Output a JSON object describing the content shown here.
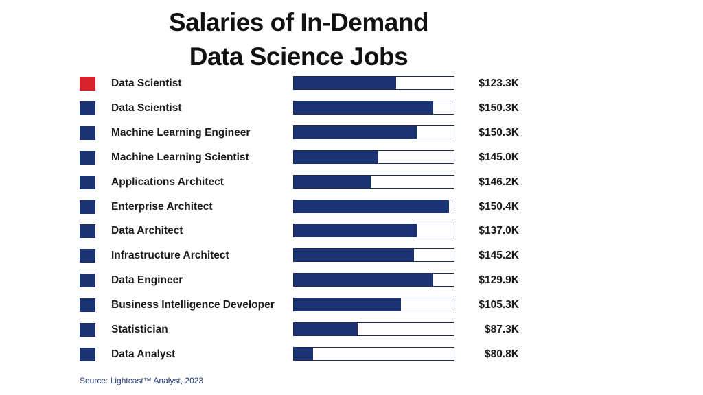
{
  "colors": {
    "highlight": "#d7212b",
    "bar": "#1c3373",
    "bar_border": "#1b2a5a",
    "text": "#1a1a1a",
    "source_text": "#1f3a7a"
  },
  "chart_data": {
    "type": "bar",
    "orientation": "horizontal",
    "title": "Salaries of In-Demand Data Science Jobs",
    "title_lines": [
      "Salaries of In-Demand",
      "Data Science Jobs"
    ],
    "source": "Source: Lightcast™ Analyst, 2023",
    "legend": "none",
    "grid": false,
    "rows": [
      {
        "category": "Data Scientist",
        "value_label": "$123.3K",
        "fill": 0.64,
        "highlight": true
      },
      {
        "category": "Data Scientist",
        "value_label": "$150.3K",
        "fill": 0.87,
        "highlight": false
      },
      {
        "category": "Machine Learning Engineer",
        "value_label": "$150.3K",
        "fill": 0.77,
        "highlight": false
      },
      {
        "category": "Machine Learning Scientist",
        "value_label": "$145.0K",
        "fill": 0.53,
        "highlight": false
      },
      {
        "category": "Applications Architect",
        "value_label": "$146.2K",
        "fill": 0.48,
        "highlight": false
      },
      {
        "category": "Enterprise Architect",
        "value_label": "$150.4K",
        "fill": 0.97,
        "highlight": false
      },
      {
        "category": "Data Architect",
        "value_label": "$137.0K",
        "fill": 0.77,
        "highlight": false
      },
      {
        "category": "Infrastructure Architect",
        "value_label": "$145.2K",
        "fill": 0.75,
        "highlight": false
      },
      {
        "category": "Data Engineer",
        "value_label": "$129.9K",
        "fill": 0.87,
        "highlight": false
      },
      {
        "category": "Business Intelligence Developer",
        "value_label": "$105.3K",
        "fill": 0.67,
        "highlight": false
      },
      {
        "category": "Statistician",
        "value_label": "$87.3K",
        "fill": 0.4,
        "highlight": false
      },
      {
        "category": "Data Analyst",
        "value_label": "$80.8K",
        "fill": 0.12,
        "highlight": false
      }
    ],
    "values_k": [
      123.3,
      150.3,
      150.3,
      145.0,
      146.2,
      150.4,
      137.0,
      145.2,
      129.9,
      105.3,
      87.3,
      80.8
    ]
  }
}
